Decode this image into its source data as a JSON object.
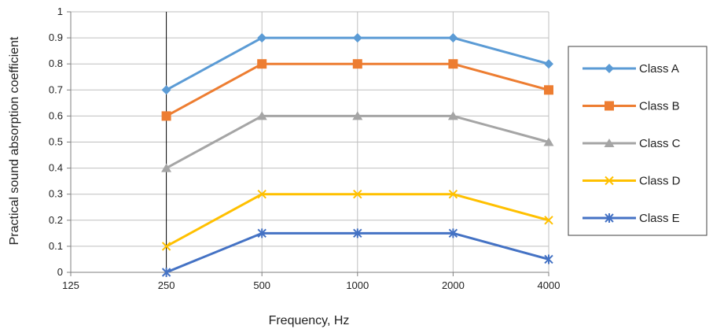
{
  "chart_data": {
    "type": "line",
    "title": "",
    "xlabel": "Frequency, Hz",
    "ylabel": "Practical sound absorption coefficient",
    "categories": [
      "125",
      "250",
      "500",
      "1000",
      "2000",
      "4000"
    ],
    "ylim": [
      0,
      1
    ],
    "yticks": [
      "0",
      "0.1",
      "0.2",
      "0.3",
      "0.4",
      "0.5",
      "0.6",
      "0.7",
      "0.8",
      "0.9",
      "1"
    ],
    "grid": true,
    "legend_position": "right",
    "series": [
      {
        "name": "Class A",
        "color": "#5B9BD5",
        "marker": "diamond",
        "values": [
          null,
          0.7,
          0.9,
          0.9,
          0.9,
          0.8
        ]
      },
      {
        "name": "Class B",
        "color": "#ED7D31",
        "marker": "square",
        "values": [
          null,
          0.6,
          0.8,
          0.8,
          0.8,
          0.7
        ]
      },
      {
        "name": "Class C",
        "color": "#A5A5A5",
        "marker": "triangle",
        "values": [
          null,
          0.4,
          0.6,
          0.6,
          0.6,
          0.5
        ]
      },
      {
        "name": "Class D",
        "color": "#FFC000",
        "marker": "x",
        "values": [
          null,
          0.1,
          0.3,
          0.3,
          0.3,
          0.2
        ]
      },
      {
        "name": "Class E",
        "color": "#4472C4",
        "marker": "star",
        "values": [
          null,
          0.0,
          0.15,
          0.15,
          0.15,
          0.05
        ]
      }
    ]
  }
}
